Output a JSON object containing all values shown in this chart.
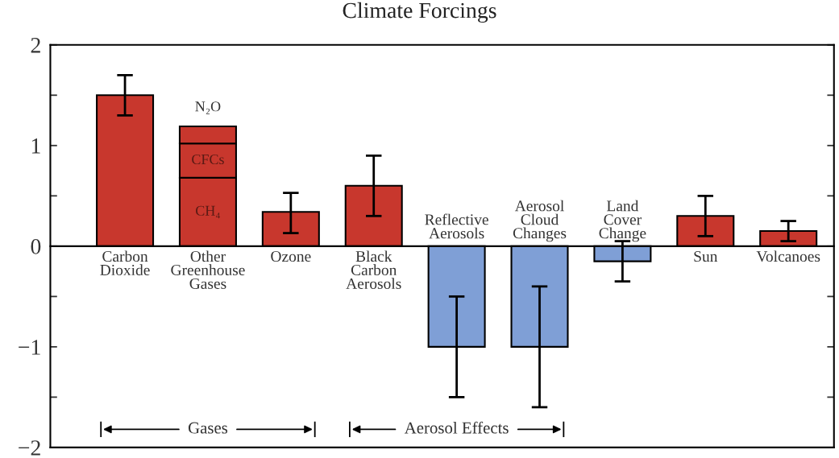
{
  "chart_data": {
    "type": "bar",
    "title": "Climate Forcings",
    "categories": [
      "Carbon\nDioxide",
      "Other\nGreenhouse\nGases",
      "Ozone",
      "Black\nCarbon\nAerosols",
      "Reflective\nAerosols",
      "Aerosol\nCloud\nChanges",
      "Land\nCover\nChange",
      "Sun",
      "Volcanoes"
    ],
    "stacked": true,
    "series": [
      {
        "colors": [
          "#c8372d",
          "#c8372d",
          "#c8372d",
          "#c8372d",
          "#7f9fd6",
          "#7f9fd6",
          "#7f9fd6",
          "#c8372d",
          "#c8372d"
        ],
        "values": [
          1.5,
          0.68,
          0.34,
          0.6,
          -1.0,
          -1.0,
          -0.15,
          0.3,
          0.15
        ],
        "errors": [
          [
            1.3,
            1.7
          ],
          null,
          [
            0.13,
            0.53
          ],
          [
            0.3,
            0.9
          ],
          [
            -1.5,
            -0.5
          ],
          [
            -1.6,
            -0.4
          ],
          [
            -0.35,
            0.05
          ],
          [
            0.1,
            0.5
          ],
          [
            0.05,
            0.25
          ]
        ]
      },
      {
        "name": "CFCs",
        "color": "#c8372d",
        "values": [
          null,
          0.34,
          null,
          null,
          null,
          null,
          null,
          null,
          null
        ]
      },
      {
        "name": "N₂O",
        "color": "#c8372d",
        "values": [
          null,
          0.17,
          null,
          null,
          null,
          null,
          null,
          null,
          null
        ]
      }
    ],
    "annotations": [
      "CH₄",
      "Gases",
      "Aerosol Effects"
    ],
    "ylim": [
      -2,
      2
    ],
    "yticks": [
      -2,
      {
        "value": -1.5,
        "label": null
      },
      -1,
      {
        "value": -0.5,
        "label": null
      },
      0,
      {
        "value": 0.5,
        "label": null
      },
      1,
      {
        "value": 1.5,
        "label": null
      },
      2
    ],
    "grid": false,
    "legend": false
  }
}
